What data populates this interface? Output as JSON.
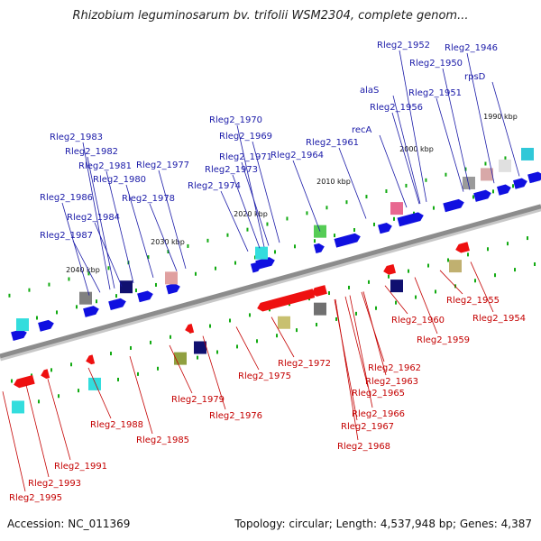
{
  "title": "Rhizobium leguminosarum bv. trifolii WSM2304, complete genom...",
  "footer": {
    "accession": "Accession: NC_011369",
    "info": "Topology: circular; Length: 4,537,948 bp; Genes: 4,387"
  },
  "colors": {
    "forward_label": "#1a1aa8",
    "reverse_label": "#c40000",
    "backbone": "#8c8c8c",
    "forward_gene": "#1010e0",
    "reverse_gene": "#ee1010",
    "cog_green": "#11aa11"
  },
  "ticks": [
    "1990 kbp",
    "2000 kbp",
    "2010 kbp",
    "2020 kbp",
    "2030 kbp",
    "2040 kbp"
  ],
  "forward_genes": [
    "Rleg2_1946",
    "rpsD",
    "Rleg2_1950",
    "Rleg2_1952",
    "Rleg2_1951",
    "alaS",
    "Rleg2_1956",
    "recA",
    "Rleg2_1961",
    "Rleg2_1964",
    "Rleg2_1970",
    "Rleg2_1969",
    "Rleg2_1971",
    "Rleg2_1973",
    "Rleg2_1974",
    "Rleg2_1977",
    "Rleg2_1978",
    "Rleg2_1983",
    "Rleg2_1982",
    "Rleg2_1981",
    "Rleg2_1980",
    "Rleg2_1986",
    "Rleg2_1984",
    "Rleg2_1987"
  ],
  "reverse_genes": [
    "Rleg2_1955",
    "Rleg2_1954",
    "Rleg2_1960",
    "Rleg2_1959",
    "Rleg2_1962",
    "Rleg2_1963",
    "Rleg2_1965",
    "Rleg2_1966",
    "Rleg2_1967",
    "Rleg2_1968",
    "Rleg2_1972",
    "Rleg2_1975",
    "Rleg2_1976",
    "Rleg2_1979",
    "Rleg2_1985",
    "Rleg2_1988",
    "Rleg2_1991",
    "Rleg2_1993",
    "Rleg2_1995"
  ]
}
